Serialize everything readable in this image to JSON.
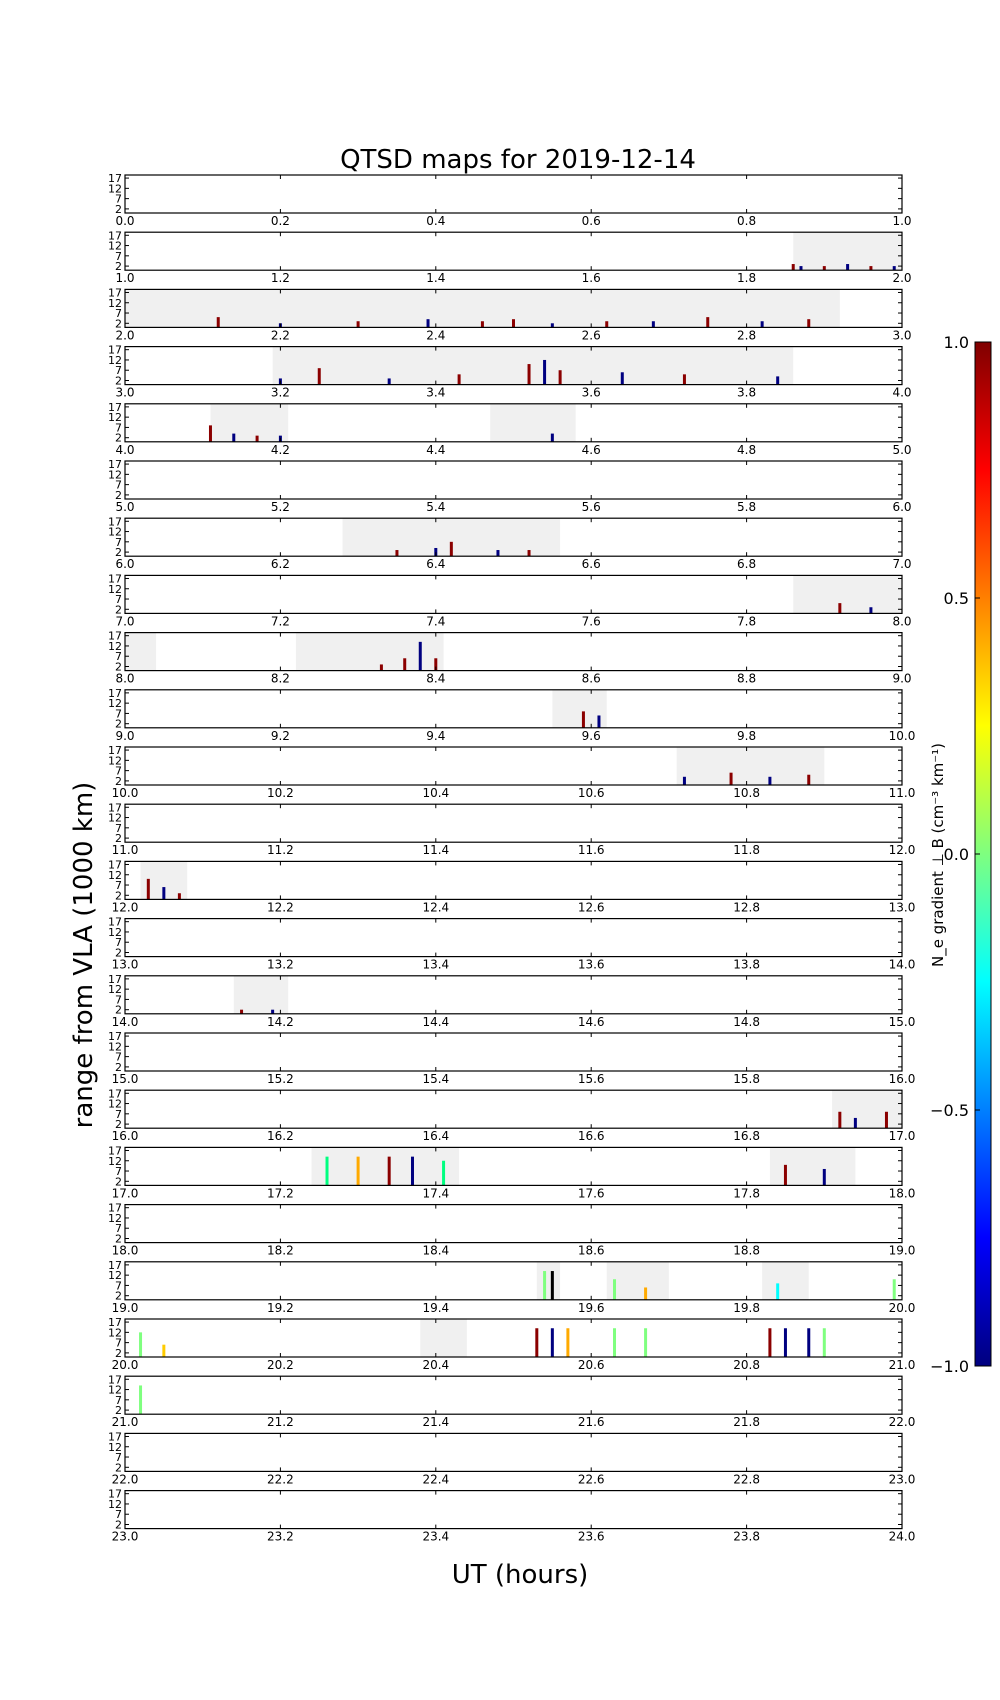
{
  "chart_data": {
    "type": "heatmap",
    "title": "QTSD maps for 2019-12-14",
    "xlabel": "UT (hours)",
    "ylabel": "range from VLA (1000 km)",
    "y_ticks": [
      "2",
      "7",
      "12",
      "17"
    ],
    "ylim": [
      0,
      18.5
    ],
    "colorbar": {
      "label": "N_e gradient ⊥ B (cm⁻³ km⁻¹)",
      "range": [
        -1.0,
        1.0
      ],
      "ticks": [
        "1.0",
        "0.5",
        "0.0",
        "−0.5",
        "−1.0"
      ],
      "colormap": "jet"
    },
    "panels": [
      {
        "start": 0,
        "x_ticks": [
          "0.0",
          "0.2",
          "0.4",
          "0.6",
          "0.8",
          "1.0"
        ],
        "coverage": [],
        "events": []
      },
      {
        "start": 1,
        "x_ticks": [
          "1.0",
          "1.2",
          "1.4",
          "1.6",
          "1.8",
          "2.0"
        ],
        "coverage": [
          [
            1.86,
            2.0
          ]
        ],
        "events": [
          {
            "t": 1.86,
            "h": 3,
            "c": "#8b0000"
          },
          {
            "t": 1.87,
            "h": 2,
            "c": "#000080"
          },
          {
            "t": 1.9,
            "h": 2,
            "c": "#8b0000"
          },
          {
            "t": 1.93,
            "h": 3,
            "c": "#000080"
          },
          {
            "t": 1.96,
            "h": 2,
            "c": "#8b0000"
          },
          {
            "t": 1.99,
            "h": 2,
            "c": "#000080"
          }
        ]
      },
      {
        "start": 2,
        "x_ticks": [
          "2.0",
          "2.2",
          "2.4",
          "2.6",
          "2.8",
          "3.0"
        ],
        "coverage": [
          [
            2.0,
            2.92
          ]
        ],
        "events": [
          {
            "t": 2.12,
            "h": 5,
            "c": "#8b0000"
          },
          {
            "t": 2.2,
            "h": 2,
            "c": "#000080"
          },
          {
            "t": 2.3,
            "h": 3,
            "c": "#8b0000"
          },
          {
            "t": 2.39,
            "h": 4,
            "c": "#000080"
          },
          {
            "t": 2.46,
            "h": 3,
            "c": "#8b0000"
          },
          {
            "t": 2.5,
            "h": 4,
            "c": "#8b0000"
          },
          {
            "t": 2.55,
            "h": 2,
            "c": "#000080"
          },
          {
            "t": 2.62,
            "h": 3,
            "c": "#8b0000"
          },
          {
            "t": 2.68,
            "h": 3,
            "c": "#000080"
          },
          {
            "t": 2.75,
            "h": 5,
            "c": "#8b0000"
          },
          {
            "t": 2.82,
            "h": 3,
            "c": "#000080"
          },
          {
            "t": 2.88,
            "h": 4,
            "c": "#8b0000"
          }
        ]
      },
      {
        "start": 3,
        "x_ticks": [
          "3.0",
          "3.2",
          "3.4",
          "3.6",
          "3.8",
          "4.0"
        ],
        "coverage": [
          [
            3.19,
            3.86
          ]
        ],
        "events": [
          {
            "t": 3.2,
            "h": 3,
            "c": "#000080"
          },
          {
            "t": 3.25,
            "h": 8,
            "c": "#8b0000"
          },
          {
            "t": 3.34,
            "h": 3,
            "c": "#000080"
          },
          {
            "t": 3.43,
            "h": 5,
            "c": "#8b0000"
          },
          {
            "t": 3.52,
            "h": 10,
            "c": "#8b0000"
          },
          {
            "t": 3.54,
            "h": 12,
            "c": "#000080"
          },
          {
            "t": 3.56,
            "h": 7,
            "c": "#8b0000"
          },
          {
            "t": 3.64,
            "h": 6,
            "c": "#000080"
          },
          {
            "t": 3.72,
            "h": 5,
            "c": "#8b0000"
          },
          {
            "t": 3.84,
            "h": 4,
            "c": "#000080"
          }
        ]
      },
      {
        "start": 4,
        "x_ticks": [
          "4.0",
          "4.2",
          "4.4",
          "4.6",
          "4.8",
          "5.0"
        ],
        "coverage": [
          [
            4.11,
            4.21
          ],
          [
            4.47,
            4.58
          ]
        ],
        "events": [
          {
            "t": 4.11,
            "h": 8,
            "c": "#8b0000"
          },
          {
            "t": 4.14,
            "h": 4,
            "c": "#000080"
          },
          {
            "t": 4.17,
            "h": 3,
            "c": "#8b0000"
          },
          {
            "t": 4.2,
            "h": 3,
            "c": "#000080"
          },
          {
            "t": 4.55,
            "h": 4,
            "c": "#000080"
          }
        ]
      },
      {
        "start": 5,
        "x_ticks": [
          "5.0",
          "5.2",
          "5.4",
          "5.6",
          "5.8",
          "6.0"
        ],
        "coverage": [],
        "events": []
      },
      {
        "start": 6,
        "x_ticks": [
          "6.0",
          "6.2",
          "6.4",
          "6.6",
          "6.8",
          "7.0"
        ],
        "coverage": [
          [
            6.28,
            6.56
          ]
        ],
        "events": [
          {
            "t": 6.35,
            "h": 3,
            "c": "#8b0000"
          },
          {
            "t": 6.4,
            "h": 4,
            "c": "#000080"
          },
          {
            "t": 6.42,
            "h": 7,
            "c": "#8b0000"
          },
          {
            "t": 6.48,
            "h": 3,
            "c": "#000080"
          },
          {
            "t": 6.52,
            "h": 3,
            "c": "#8b0000"
          }
        ]
      },
      {
        "start": 7,
        "x_ticks": [
          "7.0",
          "7.2",
          "7.4",
          "7.6",
          "7.8",
          "8.0"
        ],
        "coverage": [
          [
            7.86,
            8.0
          ]
        ],
        "events": [
          {
            "t": 7.92,
            "h": 5,
            "c": "#8b0000"
          },
          {
            "t": 7.96,
            "h": 3,
            "c": "#000080"
          }
        ]
      },
      {
        "start": 8,
        "x_ticks": [
          "8.0",
          "8.2",
          "8.4",
          "8.6",
          "8.8",
          "9.0"
        ],
        "coverage": [
          [
            8.0,
            8.04
          ],
          [
            8.22,
            8.41
          ]
        ],
        "events": [
          {
            "t": 8.33,
            "h": 3,
            "c": "#8b0000"
          },
          {
            "t": 8.36,
            "h": 6,
            "c": "#8b0000"
          },
          {
            "t": 8.38,
            "h": 14,
            "c": "#000080"
          },
          {
            "t": 8.4,
            "h": 6,
            "c": "#8b0000"
          }
        ]
      },
      {
        "start": 9,
        "x_ticks": [
          "9.0",
          "9.2",
          "9.4",
          "9.6",
          "9.8",
          "10.0"
        ],
        "coverage": [
          [
            9.55,
            9.62
          ]
        ],
        "events": [
          {
            "t": 9.59,
            "h": 8,
            "c": "#8b0000"
          },
          {
            "t": 9.61,
            "h": 6,
            "c": "#000080"
          }
        ]
      },
      {
        "start": 10,
        "x_ticks": [
          "10.0",
          "10.2",
          "10.4",
          "10.6",
          "10.8",
          "11.0"
        ],
        "coverage": [
          [
            10.71,
            10.9
          ]
        ],
        "events": [
          {
            "t": 10.72,
            "h": 4,
            "c": "#000080"
          },
          {
            "t": 10.78,
            "h": 6,
            "c": "#8b0000"
          },
          {
            "t": 10.83,
            "h": 4,
            "c": "#000080"
          },
          {
            "t": 10.88,
            "h": 5,
            "c": "#8b0000"
          }
        ]
      },
      {
        "start": 11,
        "x_ticks": [
          "11.0",
          "11.2",
          "11.4",
          "11.6",
          "11.8",
          "12.0"
        ],
        "coverage": [],
        "events": []
      },
      {
        "start": 12,
        "x_ticks": [
          "12.0",
          "12.2",
          "12.4",
          "12.6",
          "12.8",
          "13.0"
        ],
        "coverage": [
          [
            12.02,
            12.08
          ]
        ],
        "events": [
          {
            "t": 12.03,
            "h": 10,
            "c": "#8b0000"
          },
          {
            "t": 12.05,
            "h": 6,
            "c": "#000080"
          },
          {
            "t": 12.07,
            "h": 3,
            "c": "#8b0000"
          }
        ]
      },
      {
        "start": 13,
        "x_ticks": [
          "13.0",
          "13.2",
          "13.4",
          "13.6",
          "13.8",
          "14.0"
        ],
        "coverage": [],
        "events": []
      },
      {
        "start": 14,
        "x_ticks": [
          "14.0",
          "14.2",
          "14.4",
          "14.6",
          "14.8",
          "15.0"
        ],
        "coverage": [
          [
            14.14,
            14.21
          ]
        ],
        "events": [
          {
            "t": 14.15,
            "h": 2,
            "c": "#8b0000"
          },
          {
            "t": 14.19,
            "h": 2,
            "c": "#000080"
          }
        ]
      },
      {
        "start": 15,
        "x_ticks": [
          "15.0",
          "15.2",
          "15.4",
          "15.6",
          "15.8",
          "16.0"
        ],
        "coverage": [],
        "events": []
      },
      {
        "start": 16,
        "x_ticks": [
          "16.0",
          "16.2",
          "16.4",
          "16.6",
          "16.8",
          "17.0"
        ],
        "coverage": [
          [
            16.91,
            17.0
          ]
        ],
        "events": [
          {
            "t": 16.92,
            "h": 8,
            "c": "#8b0000"
          },
          {
            "t": 16.94,
            "h": 5,
            "c": "#000080"
          },
          {
            "t": 16.98,
            "h": 8,
            "c": "#8b0000"
          }
        ]
      },
      {
        "start": 17,
        "x_ticks": [
          "17.0",
          "17.2",
          "17.4",
          "17.6",
          "17.8",
          "18.0"
        ],
        "coverage": [
          [
            17.24,
            17.43
          ],
          [
            17.83,
            17.94
          ]
        ],
        "events": [
          {
            "t": 17.26,
            "h": 14,
            "c": "#00ff80"
          },
          {
            "t": 17.3,
            "h": 14,
            "c": "#ffaa00"
          },
          {
            "t": 17.34,
            "h": 14,
            "c": "#8b0000"
          },
          {
            "t": 17.37,
            "h": 14,
            "c": "#000080"
          },
          {
            "t": 17.41,
            "h": 12,
            "c": "#00ff80"
          },
          {
            "t": 17.85,
            "h": 10,
            "c": "#8b0000"
          },
          {
            "t": 17.9,
            "h": 8,
            "c": "#000080"
          }
        ]
      },
      {
        "start": 18,
        "x_ticks": [
          "18.0",
          "18.2",
          "18.4",
          "18.6",
          "18.8",
          "19.0"
        ],
        "coverage": [],
        "events": []
      },
      {
        "start": 19,
        "x_ticks": [
          "19.0",
          "19.2",
          "19.4",
          "19.6",
          "19.8",
          "20.0"
        ],
        "coverage": [
          [
            19.53,
            19.56
          ],
          [
            19.62,
            19.7
          ],
          [
            19.82,
            19.88
          ]
        ],
        "events": [
          {
            "t": 19.54,
            "h": 14,
            "c": "#7fff7f"
          },
          {
            "t": 19.55,
            "h": 14,
            "c": "#000000"
          },
          {
            "t": 19.63,
            "h": 10,
            "c": "#7fff7f"
          },
          {
            "t": 19.67,
            "h": 6,
            "c": "#ffaa00"
          },
          {
            "t": 19.84,
            "h": 8,
            "c": "#00ffff"
          },
          {
            "t": 19.99,
            "h": 10,
            "c": "#7fff7f"
          }
        ]
      },
      {
        "start": 20,
        "x_ticks": [
          "20.0",
          "20.2",
          "20.4",
          "20.6",
          "20.8",
          "21.0"
        ],
        "coverage": [
          [
            20.38,
            20.44
          ]
        ],
        "events": [
          {
            "t": 20.02,
            "h": 12,
            "c": "#7fff7f"
          },
          {
            "t": 20.05,
            "h": 6,
            "c": "#ffcc00"
          },
          {
            "t": 20.53,
            "h": 14,
            "c": "#8b0000"
          },
          {
            "t": 20.55,
            "h": 14,
            "c": "#000080"
          },
          {
            "t": 20.57,
            "h": 14,
            "c": "#ffaa00"
          },
          {
            "t": 20.63,
            "h": 14,
            "c": "#7fff7f"
          },
          {
            "t": 20.67,
            "h": 14,
            "c": "#7fff7f"
          },
          {
            "t": 20.83,
            "h": 14,
            "c": "#8b0000"
          },
          {
            "t": 20.85,
            "h": 14,
            "c": "#000080"
          },
          {
            "t": 20.88,
            "h": 14,
            "c": "#000080"
          },
          {
            "t": 20.9,
            "h": 14,
            "c": "#7fff7f"
          }
        ]
      },
      {
        "start": 21,
        "x_ticks": [
          "21.0",
          "21.2",
          "21.4",
          "21.6",
          "21.8",
          "22.0"
        ],
        "coverage": [],
        "events": [
          {
            "t": 21.02,
            "h": 14,
            "c": "#7fff7f"
          }
        ]
      },
      {
        "start": 22,
        "x_ticks": [
          "22.0",
          "22.2",
          "22.4",
          "22.6",
          "22.8",
          "23.0"
        ],
        "coverage": [],
        "events": []
      },
      {
        "start": 23,
        "x_ticks": [
          "23.0",
          "23.2",
          "23.4",
          "23.6",
          "23.8",
          "24.0"
        ],
        "coverage": [],
        "events": []
      }
    ]
  }
}
